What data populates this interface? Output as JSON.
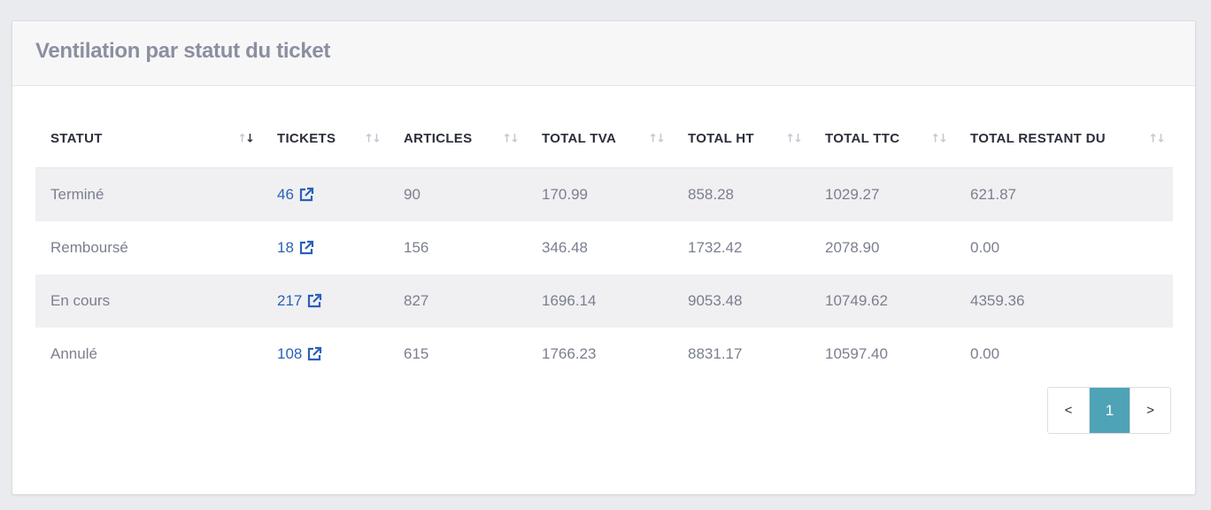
{
  "card": {
    "title": "Ventilation par statut du ticket"
  },
  "table": {
    "columns": [
      {
        "label": "STATUT",
        "sort": "desc"
      },
      {
        "label": "TICKETS",
        "sort": "none"
      },
      {
        "label": "ARTICLES",
        "sort": "none"
      },
      {
        "label": "TOTAL TVA",
        "sort": "none"
      },
      {
        "label": "TOTAL HT",
        "sort": "none"
      },
      {
        "label": "TOTAL TTC",
        "sort": "none"
      },
      {
        "label": "TOTAL RESTANT DU",
        "sort": "none"
      }
    ],
    "rows": [
      {
        "statut": "Terminé",
        "tickets": "46",
        "articles": "90",
        "total_tva": "170.99",
        "total_ht": "858.28",
        "total_ttc": "1029.27",
        "total_restant_du": "621.87"
      },
      {
        "statut": "Remboursé",
        "tickets": "18",
        "articles": "156",
        "total_tva": "346.48",
        "total_ht": "1732.42",
        "total_ttc": "2078.90",
        "total_restant_du": "0.00"
      },
      {
        "statut": "En cours",
        "tickets": "217",
        "articles": "827",
        "total_tva": "1696.14",
        "total_ht": "9053.48",
        "total_ttc": "10749.62",
        "total_restant_du": "4359.36"
      },
      {
        "statut": "Annulé",
        "tickets": "108",
        "articles": "615",
        "total_tva": "1766.23",
        "total_ht": "8831.17",
        "total_ttc": "10597.40",
        "total_restant_du": "0.00"
      }
    ]
  },
  "pagination": {
    "prev_label": "<",
    "current_page": "1",
    "next_label": ">"
  },
  "colors": {
    "link": "#2a61b8",
    "active_page": "#4fa3b7",
    "striped_row": "#f0f0f2"
  },
  "icons": {
    "sort": "sort-arrows-icon",
    "external_link": "external-link-icon"
  }
}
